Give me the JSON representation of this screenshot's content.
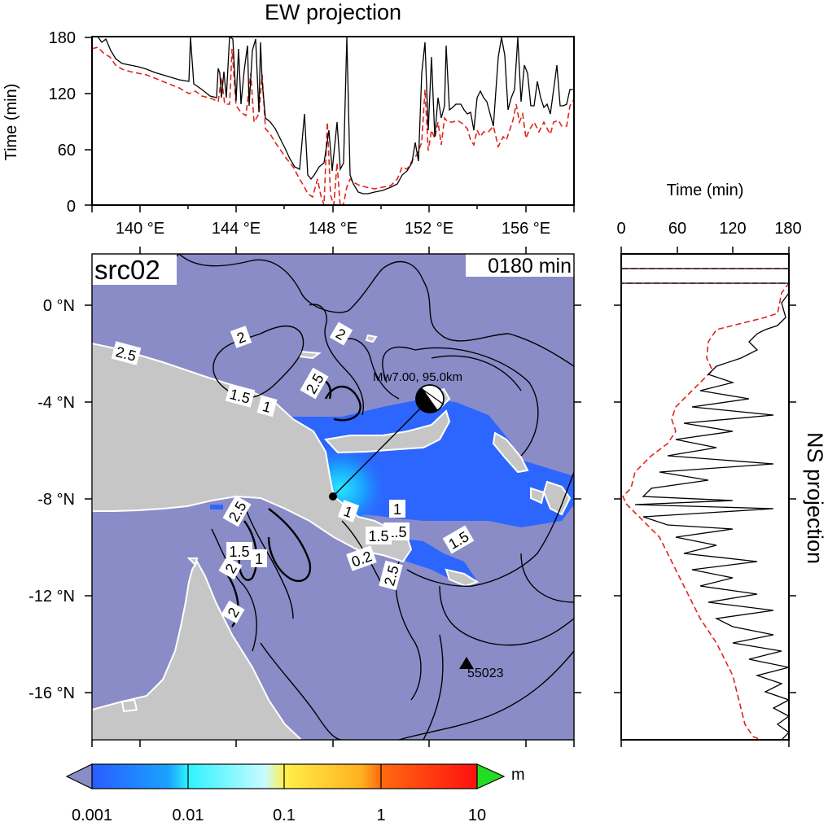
{
  "titles": {
    "ew": "EW projection",
    "ns": "NS projection",
    "time_axis_y": "Time (min)",
    "time_axis_x": "Time (min)"
  },
  "map": {
    "source_label": "src02",
    "time_label": "0180 min",
    "event_label": "Mw7.00, 95.0km",
    "station_label": "55023",
    "contour_labels": [
      "2",
      "2",
      "2.5",
      "2.5",
      "1.5",
      "1",
      "2.5",
      "1",
      "1.5",
      "1",
      "1.5",
      "2",
      "1.5",
      "1",
      "0.2",
      "2.5",
      "1.5",
      "2"
    ],
    "lon_ticks": [
      "140 °E",
      "144 °E",
      "148 °E",
      "152 °E",
      "156 °E"
    ],
    "lat_ticks": [
      "0 °N",
      "-4 °N",
      "-8 °N",
      "-12 °N",
      "-16 °N"
    ],
    "colors": {
      "ocean": "#8a8cc8",
      "land": "#c6c6c6",
      "wave_dark": "#2c66ff",
      "wave_light": "#28d2ff"
    }
  },
  "ew_chart": {
    "type": "line",
    "x_range": [
      138,
      158
    ],
    "y_ticks": [
      "0",
      "60",
      "120",
      "180"
    ],
    "ylim": [
      0,
      180
    ],
    "series_colors": {
      "max_amp_time": "#000000",
      "arrival_time": "#e0251d"
    }
  },
  "ns_chart": {
    "type": "line",
    "x_ticks": [
      "0",
      "60",
      "120",
      "180"
    ],
    "xlim": [
      0,
      180
    ],
    "series_colors": {
      "max_amp_time": "#000000",
      "arrival_time": "#e0251d"
    }
  },
  "colorbar": {
    "scale": "log",
    "ticks": [
      "0.001",
      "0.01",
      "0.1",
      "1",
      "10"
    ],
    "unit": "m",
    "stops": [
      "#2a5cff",
      "#1aa3ff",
      "#2ef3ff",
      "#c8fbff",
      "#fff04a",
      "#ffb01e",
      "#ff5a10",
      "#ff1a1a"
    ],
    "low_arrow": "#8a8cc8",
    "high_arrow": "#22dd22"
  }
}
